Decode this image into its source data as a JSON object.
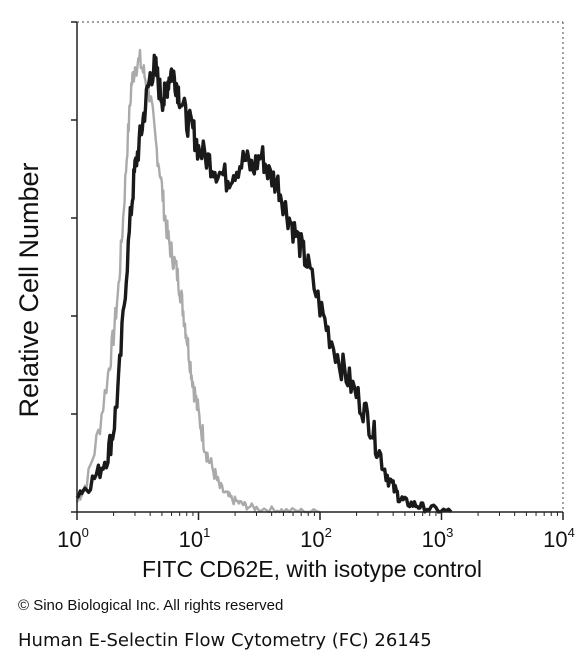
{
  "chart_data": {
    "type": "area",
    "title": "",
    "xlabel": "FITC  CD62E,  with isotype control",
    "ylabel": "Relative Cell Number",
    "x_scale": "log",
    "xlim": [
      1,
      10000
    ],
    "ylim": [
      0,
      100
    ],
    "x_ticks": [
      {
        "base": "10",
        "exp": "0",
        "value": 1
      },
      {
        "base": "10",
        "exp": "1",
        "value": 10
      },
      {
        "base": "10",
        "exp": "2",
        "value": 100
      },
      {
        "base": "10",
        "exp": "3",
        "value": 1000
      },
      {
        "base": "10",
        "exp": "4",
        "value": 10000
      }
    ],
    "y_ticks": [
      0,
      20,
      40,
      60,
      80,
      100
    ],
    "grid": false,
    "series": [
      {
        "color": "#aaaaaa",
        "x": [
          1.0,
          1.2,
          1.5,
          1.8,
          2.0,
          2.2,
          2.4,
          2.6,
          2.8,
          3.0,
          3.3,
          3.6,
          4.0,
          4.4,
          4.8,
          5.2,
          5.6,
          6.0,
          6.5,
          7.0,
          7.5,
          8.0,
          8.6,
          9.2,
          10.0,
          11.0,
          12.0,
          13.5,
          15.0,
          17.0,
          19.0,
          22.0,
          25.0,
          30.0,
          40.0,
          50.0,
          70.0,
          100.0
        ],
        "values": [
          2,
          6,
          16,
          28,
          36,
          46,
          60,
          75,
          87,
          91,
          92,
          89,
          85,
          76,
          70,
          62,
          56,
          53,
          50,
          46,
          41,
          36,
          30,
          25,
          20,
          15,
          11,
          8,
          5,
          3.5,
          2.5,
          1.8,
          1.2,
          0.8,
          0.5,
          0.3,
          0.2,
          0
        ]
      },
      {
        "color": "#1a1a1a",
        "x": [
          1.0,
          1.2,
          1.5,
          1.8,
          2.0,
          2.2,
          2.5,
          2.8,
          3.0,
          3.3,
          3.6,
          4.0,
          4.4,
          4.8,
          5.2,
          5.6,
          6.0,
          6.5,
          7.0,
          8.0,
          9.0,
          10.0,
          12.0,
          14.0,
          17.0,
          20.0,
          24.0,
          28.0,
          33.0,
          38.0,
          45.0,
          52.0,
          60.0,
          70.0,
          80.0,
          100.0,
          120.0,
          150.0,
          180.0,
          220.0,
          260.0,
          300.0,
          350.0,
          400.0,
          450.0,
          500.0,
          600.0,
          700.0,
          900.0,
          1200.0
        ],
        "values": [
          4,
          5,
          8,
          12,
          17,
          26,
          46,
          62,
          70,
          76,
          82,
          89,
          91,
          86,
          84,
          88,
          90,
          88,
          85,
          80,
          78,
          74,
          72,
          70,
          68,
          70,
          72,
          70,
          73,
          69,
          67,
          62,
          58,
          54,
          50,
          42,
          36,
          30,
          26,
          22,
          18,
          13,
          8,
          5,
          3,
          2,
          1.5,
          1,
          0.5,
          0
        ]
      }
    ],
    "annotations": []
  },
  "copyright": "© Sino Biological Inc. All rights reserved",
  "caption": "Human E-Selectin Flow Cytometry (FC) 26145"
}
